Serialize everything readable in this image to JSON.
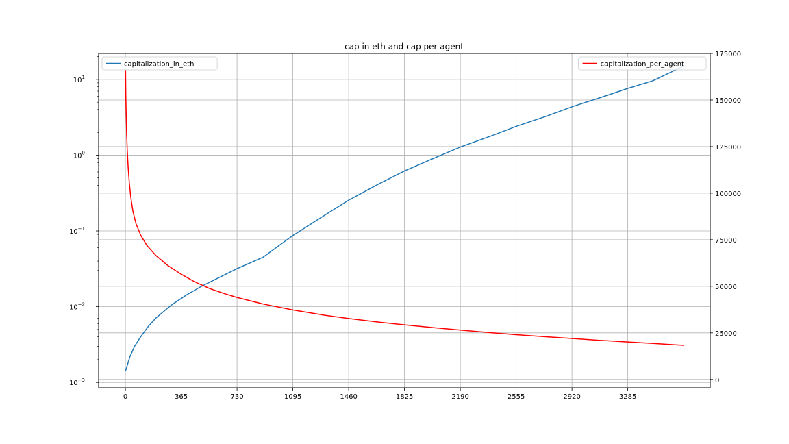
{
  "chart_data": {
    "type": "line",
    "title": "cap in eth and cap per agent",
    "xlabel": "",
    "x_ticks": [
      0,
      365,
      730,
      1095,
      1460,
      1825,
      2190,
      2555,
      2920,
      3285
    ],
    "xlim": [
      -175,
      3824
    ],
    "grid": true,
    "left_axis": {
      "ylabel": "",
      "scale": "log",
      "ylim": [
        0.00085,
        22
      ],
      "ticks": [
        {
          "value": 0.001,
          "base": "10",
          "exp": "−3"
        },
        {
          "value": 0.01,
          "base": "10",
          "exp": "−2"
        },
        {
          "value": 0.1,
          "base": "10",
          "exp": "−1"
        },
        {
          "value": 1,
          "base": "10",
          "exp": "0"
        },
        {
          "value": 10,
          "base": "10",
          "exp": "1"
        }
      ]
    },
    "right_axis": {
      "ylabel": "",
      "scale": "linear",
      "ylim": [
        -4500,
        175000
      ],
      "ticks": [
        0,
        25000,
        50000,
        75000,
        100000,
        125000,
        150000,
        175000
      ]
    },
    "series": [
      {
        "name": "capitalization_in_eth",
        "axis": "left",
        "color": "#1f77b4",
        "legend_position": "upper-left",
        "x": [
          0,
          30,
          60,
          100,
          150,
          200,
          300,
          400,
          500,
          600,
          730,
          900,
          1095,
          1300,
          1460,
          1650,
          1825,
          2000,
          2190,
          2400,
          2555,
          2750,
          2920,
          3100,
          3285,
          3450,
          3650
        ],
        "y": [
          0.0014,
          0.0022,
          0.003,
          0.004,
          0.0055,
          0.0071,
          0.0105,
          0.0143,
          0.0187,
          0.0236,
          0.0318,
          0.045,
          0.087,
          0.16,
          0.255,
          0.41,
          0.62,
          0.88,
          1.28,
          1.82,
          2.4,
          3.25,
          4.35,
          5.7,
          7.6,
          9.6,
          15.0
        ]
      },
      {
        "name": "capitalization_per_agent",
        "axis": "right",
        "color": "#ff0000",
        "legend_position": "upper-right",
        "x": [
          1,
          3,
          5,
          8,
          12,
          18,
          25,
          35,
          50,
          70,
          100,
          140,
          200,
          280,
          365,
          450,
          550,
          650,
          730,
          900,
          1095,
          1300,
          1460,
          1650,
          1825,
          2000,
          2190,
          2400,
          2555,
          2750,
          2920,
          3100,
          3285,
          3450,
          3650
        ],
        "y": [
          166000,
          152000,
          143000,
          132000,
          123000,
          114000,
          106000,
          98000,
          90000,
          83500,
          77500,
          72000,
          66500,
          61000,
          56500,
          52500,
          48800,
          46000,
          44000,
          40500,
          37300,
          34500,
          32700,
          30800,
          29300,
          27900,
          26500,
          25000,
          24000,
          22900,
          22000,
          21000,
          20100,
          19300,
          18300
        ]
      }
    ]
  }
}
